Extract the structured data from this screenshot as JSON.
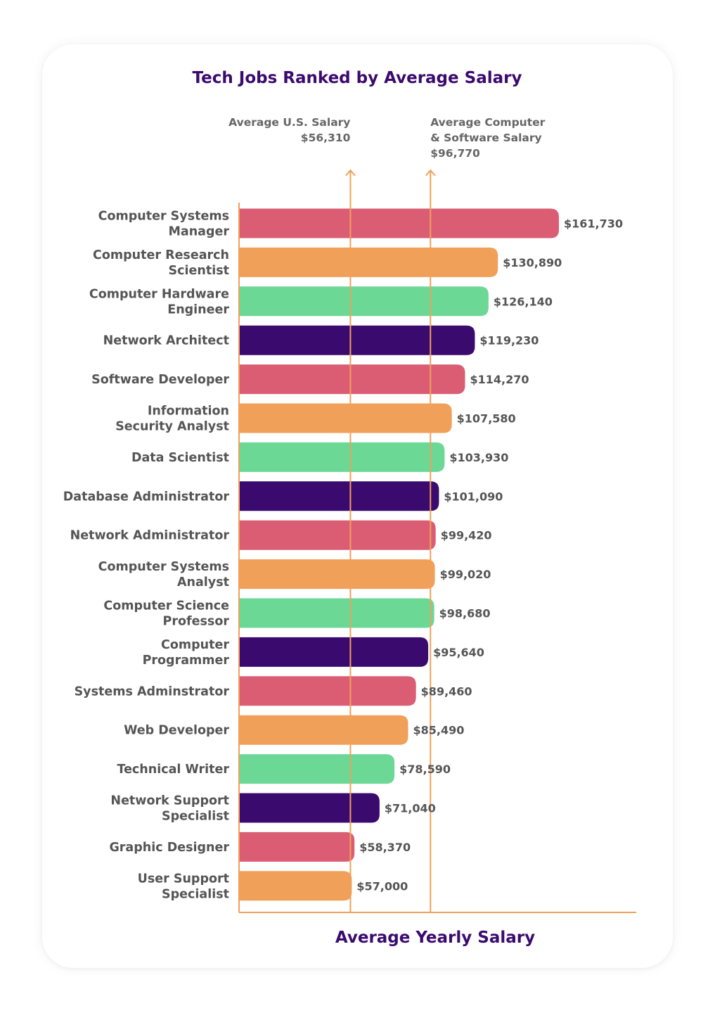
{
  "chart_data": {
    "type": "bar",
    "orientation": "horizontal",
    "title": "Tech Jobs Ranked by Average Salary",
    "xlabel": "Average Yearly Salary",
    "ylabel": "",
    "xlim": [
      0,
      175000
    ],
    "grid": false,
    "categories": [
      [
        "Computer Systems",
        "Manager"
      ],
      [
        "Computer Research",
        "Scientist"
      ],
      [
        "Computer Hardware",
        "Engineer"
      ],
      [
        "Network Architect"
      ],
      [
        "Software Developer"
      ],
      [
        "Information",
        "Security Analyst"
      ],
      [
        "Data Scientist"
      ],
      [
        "Database Administrator"
      ],
      [
        "Network Administrator"
      ],
      [
        "Computer Systems",
        "Analyst"
      ],
      [
        "Computer Science",
        "Professor"
      ],
      [
        "Computer",
        "Programmer"
      ],
      [
        "Systems Adminstrator"
      ],
      [
        "Web Developer"
      ],
      [
        "Technical Writer"
      ],
      [
        "Network Support",
        "Specialist"
      ],
      [
        "Graphic Designer"
      ],
      [
        "User Support",
        "Specialist"
      ]
    ],
    "values": [
      161730,
      130890,
      126140,
      119230,
      114270,
      107580,
      103930,
      101090,
      99420,
      99020,
      98680,
      95640,
      89460,
      85490,
      78590,
      71040,
      58370,
      57000
    ],
    "value_labels": [
      "$161,730",
      "$130,890",
      "$126,140",
      "$119,230",
      "$114,270",
      "$107,580",
      "$103,930",
      "$101,090",
      "$99,420",
      "$99,020",
      "$98,680",
      "$95,640",
      "$89,460",
      "$85,490",
      "$78,590",
      "$71,040",
      "$58,370",
      "$57,000"
    ],
    "bar_colors": [
      "#da5d74",
      "#f1a05a",
      "#6cd896",
      "#3b0a6e"
    ],
    "reference_lines": [
      {
        "value": 56310,
        "label_lines": [
          "Average U.S. Salary",
          "$56,310"
        ],
        "label_anchor": "end"
      },
      {
        "value": 96770,
        "label_lines": [
          "Average Computer",
          "& Software Salary",
          "$96,770"
        ],
        "label_anchor": "start"
      }
    ]
  },
  "colors": {
    "axis": "#f1a05a",
    "reference_line": "#f1a05a",
    "title": "#3b0a6e",
    "text": "#555555"
  }
}
